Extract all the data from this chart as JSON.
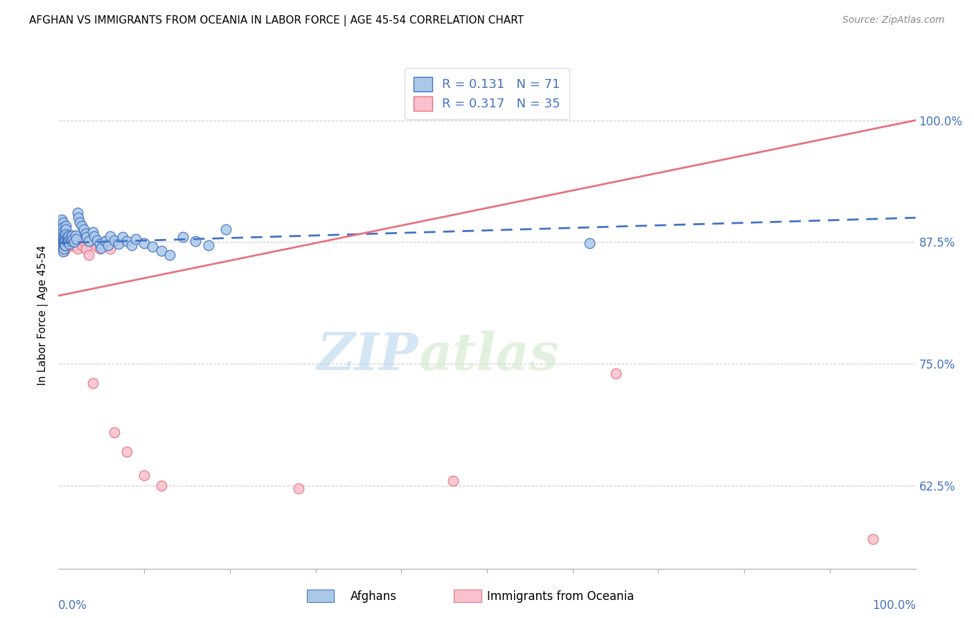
{
  "title": "AFGHAN VS IMMIGRANTS FROM OCEANIA IN LABOR FORCE | AGE 45-54 CORRELATION CHART",
  "source": "Source: ZipAtlas.com",
  "ylabel": "In Labor Force | Age 45-54",
  "yticks": [
    0.625,
    0.75,
    0.875,
    1.0
  ],
  "ytick_labels": [
    "62.5%",
    "75.0%",
    "87.5%",
    "100.0%"
  ],
  "xlim": [
    0.0,
    1.0
  ],
  "ylim": [
    0.54,
    1.06
  ],
  "legend_r1": "R = 0.131",
  "legend_n1": "N = 71",
  "legend_r2": "R = 0.317",
  "legend_n2": "N = 35",
  "blue_fill": "#aac9e8",
  "blue_edge": "#4472c4",
  "pink_fill": "#f9c0cd",
  "pink_edge": "#e8717f",
  "blue_line_color": "#4472c4",
  "pink_line_color": "#e8717f",
  "watermark_zip": "ZIP",
  "watermark_atlas": "atlas",
  "legend_label1": "Afghans",
  "legend_label2": "Immigrants from Oceania",
  "blue_x": [
    0.003,
    0.003,
    0.003,
    0.004,
    0.004,
    0.004,
    0.005,
    0.005,
    0.005,
    0.005,
    0.005,
    0.005,
    0.005,
    0.006,
    0.006,
    0.006,
    0.007,
    0.007,
    0.007,
    0.007,
    0.008,
    0.008,
    0.008,
    0.009,
    0.009,
    0.009,
    0.01,
    0.01,
    0.011,
    0.011,
    0.012,
    0.012,
    0.013,
    0.014,
    0.015,
    0.016,
    0.017,
    0.018,
    0.02,
    0.021,
    0.022,
    0.023,
    0.025,
    0.027,
    0.03,
    0.032,
    0.033,
    0.035,
    0.04,
    0.042,
    0.045,
    0.048,
    0.05,
    0.055,
    0.058,
    0.06,
    0.065,
    0.07,
    0.075,
    0.08,
    0.085,
    0.09,
    0.1,
    0.11,
    0.12,
    0.13,
    0.145,
    0.16,
    0.175,
    0.195,
    0.62
  ],
  "blue_y": [
    0.88,
    0.875,
    0.87,
    0.898,
    0.893,
    0.888,
    0.895,
    0.89,
    0.885,
    0.88,
    0.875,
    0.87,
    0.865,
    0.878,
    0.873,
    0.868,
    0.884,
    0.879,
    0.876,
    0.872,
    0.88,
    0.876,
    0.872,
    0.892,
    0.888,
    0.883,
    0.879,
    0.875,
    0.882,
    0.877,
    0.88,
    0.876,
    0.873,
    0.879,
    0.876,
    0.882,
    0.878,
    0.875,
    0.882,
    0.878,
    0.905,
    0.9,
    0.895,
    0.892,
    0.888,
    0.884,
    0.88,
    0.876,
    0.885,
    0.881,
    0.877,
    0.873,
    0.869,
    0.876,
    0.872,
    0.881,
    0.877,
    0.873,
    0.88,
    0.876,
    0.872,
    0.878,
    0.874,
    0.87,
    0.866,
    0.862,
    0.88,
    0.876,
    0.872,
    0.888,
    0.874
  ],
  "pink_x": [
    0.003,
    0.004,
    0.005,
    0.006,
    0.007,
    0.008,
    0.009,
    0.01,
    0.011,
    0.012,
    0.013,
    0.014,
    0.016,
    0.018,
    0.02,
    0.022,
    0.025,
    0.027,
    0.03,
    0.032,
    0.035,
    0.038,
    0.04,
    0.045,
    0.048,
    0.055,
    0.06,
    0.065,
    0.08,
    0.1,
    0.12,
    0.28,
    0.46,
    0.65,
    0.95
  ],
  "pink_y": [
    0.876,
    0.872,
    0.87,
    0.868,
    0.866,
    0.876,
    0.872,
    0.87,
    0.876,
    0.872,
    0.876,
    0.872,
    0.876,
    0.872,
    0.876,
    0.868,
    0.876,
    0.872,
    0.876,
    0.868,
    0.862,
    0.876,
    0.73,
    0.87,
    0.868,
    0.876,
    0.868,
    0.68,
    0.66,
    0.636,
    0.625,
    0.622,
    0.63,
    0.74,
    0.57
  ],
  "blue_trend_x": [
    0.0,
    1.0
  ],
  "blue_trend_y": [
    0.874,
    0.9
  ],
  "pink_trend_x": [
    0.0,
    1.0
  ],
  "pink_trend_y": [
    0.82,
    1.0
  ]
}
